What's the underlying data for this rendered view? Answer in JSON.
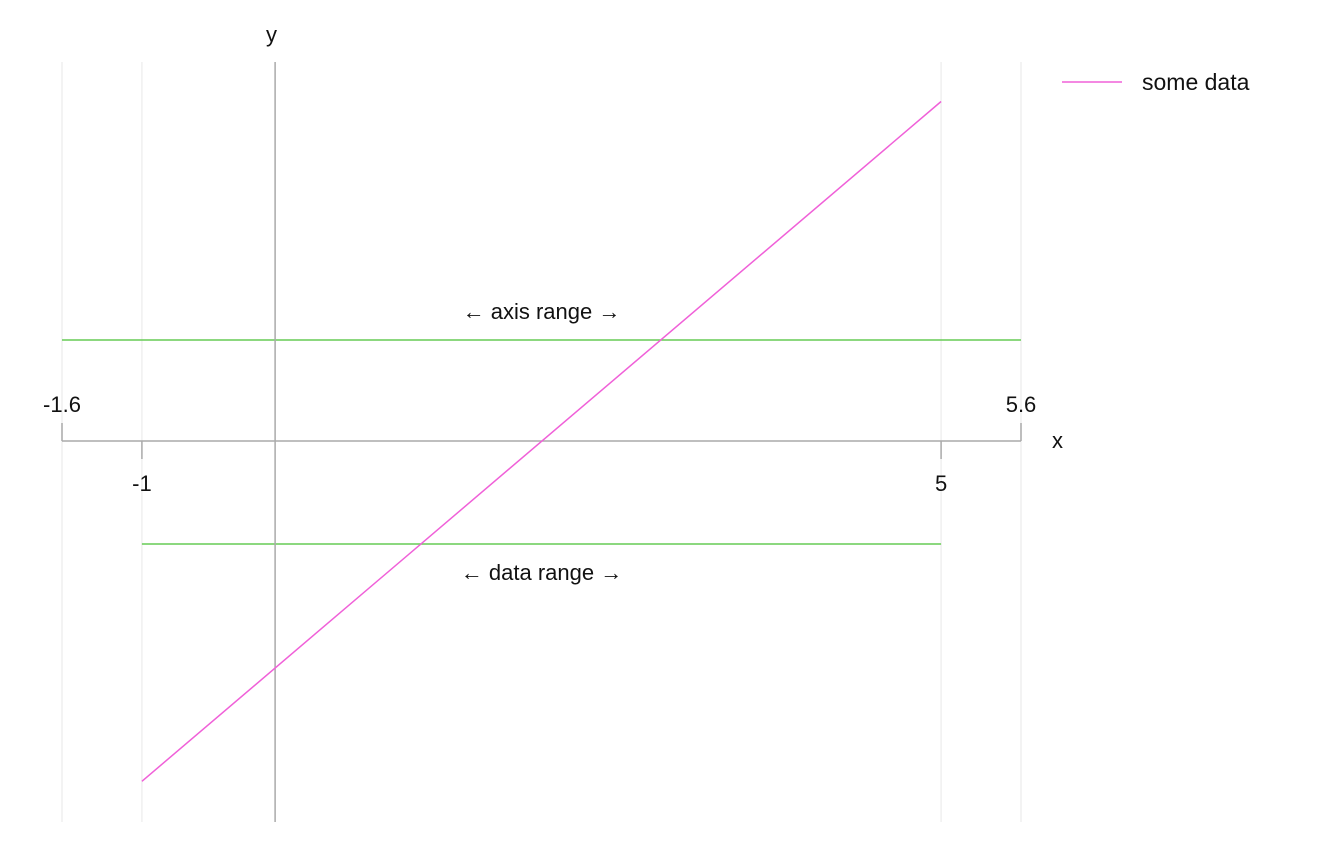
{
  "chart_data": {
    "type": "line",
    "xlabel": "x",
    "ylabel": "y",
    "xlim": [
      -1.6,
      5.6
    ],
    "grid": true,
    "legend_position": "top-right",
    "x_ticks": [
      {
        "value": -1.6,
        "label": "-1.6",
        "placement": "above"
      },
      {
        "value": -1,
        "label": "-1",
        "placement": "below"
      },
      {
        "value": 5,
        "label": "5",
        "placement": "below"
      },
      {
        "value": 5.6,
        "label": "5.6",
        "placement": "above"
      }
    ],
    "series": [
      {
        "name": "some data",
        "color": "#f060d8",
        "x": [
          -1,
          5
        ],
        "y": [
          -1,
          5
        ]
      }
    ],
    "annotations": [
      {
        "text": "← axis range →",
        "kind": "axis-range",
        "from": -1.6,
        "to": 5.6,
        "color": "#66cc55"
      },
      {
        "text": "← data range →",
        "kind": "data-range",
        "from": -1,
        "to": 5,
        "color": "#66cc55"
      }
    ],
    "colors": {
      "axis": "#aaaaaa",
      "grid": "#ebebeb",
      "range_line": "#66cc55",
      "series": "#f060d8"
    }
  }
}
